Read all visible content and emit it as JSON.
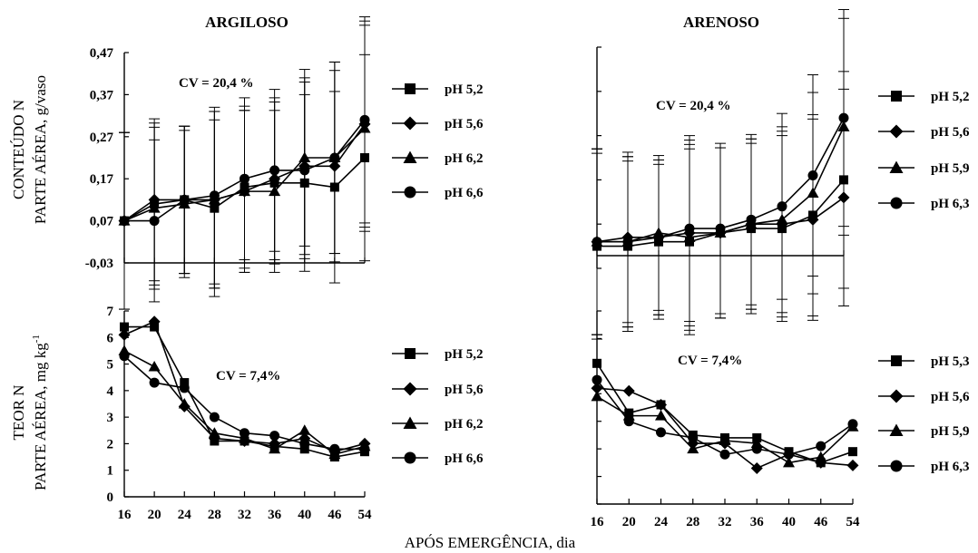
{
  "figure": {
    "col_titles": [
      "ARGILOSO",
      "ARENOSO"
    ],
    "row_labels": {
      "top": [
        "CONTEÚDO N",
        "PARTE AÉREA, g/vaso"
      ],
      "bottom": [
        "TEOR N",
        "PARTE AÉREA, mg kg",
        "-1"
      ]
    },
    "xlabel": "APÓS EMERGÊNCIA, dia",
    "x_ticks": [
      "16",
      "20",
      "24",
      "28",
      "32",
      "36",
      "40",
      "46",
      "54"
    ]
  },
  "chart_data": [
    {
      "id": "argiloso-conteudo",
      "type": "line",
      "annotation": "CV = 20,4 %",
      "ylim": [
        -0.03,
        0.47
      ],
      "y_ticks": [
        "0,47",
        "0,37",
        "0,27",
        "0,17",
        "0,07",
        "-0,03"
      ],
      "y_tick_values": [
        0.47,
        0.37,
        0.27,
        0.17,
        0.07,
        -0.03
      ],
      "categories": [
        "16",
        "20",
        "24",
        "28",
        "32",
        "36",
        "40",
        "46",
        "54"
      ],
      "error_bars": true,
      "series": [
        {
          "name": "pH 5,2",
          "marker": "square",
          "values": [
            0.07,
            0.11,
            0.12,
            0.1,
            0.15,
            0.16,
            0.16,
            0.15,
            0.22
          ]
        },
        {
          "name": "pH 5,6",
          "marker": "diamond",
          "values": [
            0.07,
            0.12,
            0.12,
            0.12,
            0.14,
            0.17,
            0.2,
            0.2,
            0.3
          ]
        },
        {
          "name": "pH 6,2",
          "marker": "triangle",
          "values": [
            0.07,
            0.1,
            0.11,
            0.12,
            0.14,
            0.14,
            0.22,
            0.22,
            0.29
          ]
        },
        {
          "name": "pH 6,6",
          "marker": "circle",
          "values": [
            0.07,
            0.07,
            0.12,
            0.13,
            0.17,
            0.19,
            0.19,
            0.22,
            0.31
          ]
        }
      ]
    },
    {
      "id": "arenoso-conteudo",
      "type": "line",
      "annotation": "CV = 20,4 %",
      "ylim": [
        -0.03,
        0.47
      ],
      "y_ticks": [],
      "y_tick_values": [
        0.47,
        0.37,
        0.27,
        0.17,
        0.07,
        -0.03
      ],
      "categories": [
        "16",
        "20",
        "24",
        "28",
        "32",
        "36",
        "40",
        "46",
        "54"
      ],
      "error_bars": true,
      "series": [
        {
          "name": "pH 5,2",
          "marker": "square",
          "values": [
            0.02,
            0.02,
            0.03,
            0.03,
            0.05,
            0.06,
            0.06,
            0.09,
            0.17
          ]
        },
        {
          "name": "pH 5,6",
          "marker": "diamond",
          "values": [
            0.03,
            0.04,
            0.04,
            0.05,
            0.05,
            0.07,
            0.07,
            0.08,
            0.13
          ]
        },
        {
          "name": "pH 5,9",
          "marker": "triangle",
          "values": [
            0.03,
            0.03,
            0.05,
            0.04,
            0.05,
            0.07,
            0.08,
            0.14,
            0.29
          ]
        },
        {
          "name": "pH 6,3",
          "marker": "circle",
          "values": [
            0.03,
            0.03,
            0.04,
            0.06,
            0.06,
            0.08,
            0.11,
            0.18,
            0.31
          ]
        }
      ]
    },
    {
      "id": "argiloso-teor",
      "type": "line",
      "annotation": "CV = 7,4%",
      "ylim": [
        0,
        7
      ],
      "y_ticks": [
        "7",
        "6",
        "5",
        "4",
        "3",
        "2",
        "1",
        "0"
      ],
      "y_tick_values": [
        7,
        6,
        5,
        4,
        3,
        2,
        1,
        0
      ],
      "categories": [
        "16",
        "20",
        "24",
        "28",
        "32",
        "36",
        "40",
        "46",
        "54"
      ],
      "error_bars": false,
      "series": [
        {
          "name": "pH 5,2",
          "marker": "square",
          "values": [
            6.4,
            6.4,
            4.3,
            2.1,
            2.1,
            1.9,
            1.8,
            1.5,
            1.7
          ]
        },
        {
          "name": "pH 5,6",
          "marker": "diamond",
          "values": [
            6.1,
            6.6,
            3.4,
            2.2,
            2.1,
            2.0,
            2.2,
            1.7,
            2.0
          ]
        },
        {
          "name": "pH 6,2",
          "marker": "triangle",
          "values": [
            5.5,
            4.9,
            3.5,
            2.4,
            2.2,
            1.8,
            2.5,
            1.6,
            1.9
          ]
        },
        {
          "name": "pH 6,6",
          "marker": "circle",
          "values": [
            5.3,
            4.3,
            4.1,
            3.0,
            2.4,
            2.3,
            2.0,
            1.8,
            1.8
          ]
        }
      ]
    },
    {
      "id": "arenoso-teor",
      "type": "line",
      "annotation": "CV = 7,4%",
      "ylim": [
        0,
        7
      ],
      "y_ticks": [],
      "y_tick_values": [
        7,
        6,
        5,
        4,
        3,
        2,
        1,
        0
      ],
      "categories": [
        "16",
        "20",
        "24",
        "28",
        "32",
        "36",
        "40",
        "46",
        "54"
      ],
      "error_bars": false,
      "series": [
        {
          "name": "pH 5,3",
          "marker": "square",
          "values": [
            5.1,
            3.3,
            3.6,
            2.5,
            2.4,
            2.4,
            1.9,
            1.5,
            1.9
          ]
        },
        {
          "name": "pH 5,6",
          "marker": "diamond",
          "values": [
            4.2,
            4.1,
            3.6,
            2.2,
            2.2,
            1.3,
            1.8,
            1.5,
            1.4
          ]
        },
        {
          "name": "pH 5,9",
          "marker": "triangle",
          "values": [
            3.9,
            3.2,
            3.2,
            2.0,
            2.3,
            2.2,
            1.5,
            1.7,
            2.8
          ]
        },
        {
          "name": "pH 6,3",
          "marker": "circle",
          "values": [
            4.5,
            3.0,
            2.6,
            2.4,
            1.8,
            2.0,
            1.8,
            2.1,
            2.9
          ]
        }
      ]
    }
  ]
}
